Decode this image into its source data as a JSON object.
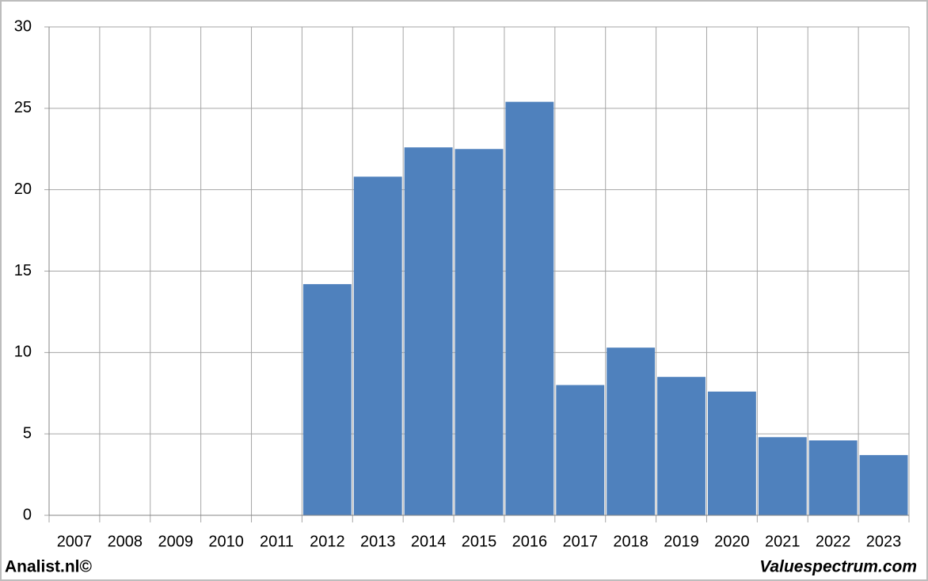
{
  "chart_data": {
    "type": "bar",
    "categories": [
      "2007",
      "2008",
      "2009",
      "2010",
      "2011",
      "2012",
      "2013",
      "2014",
      "2015",
      "2016",
      "2017",
      "2018",
      "2019",
      "2020",
      "2021",
      "2022",
      "2023"
    ],
    "values": [
      null,
      null,
      null,
      null,
      null,
      14.2,
      20.8,
      22.6,
      22.5,
      25.4,
      8.0,
      10.3,
      8.5,
      7.6,
      4.8,
      4.6,
      3.7
    ],
    "color": "#4f81bd",
    "ylim": [
      0,
      30
    ],
    "yticks": [
      0,
      5,
      10,
      15,
      20,
      25,
      30
    ],
    "grid": true
  },
  "footer": {
    "left": "Analist.nl©",
    "right": "Valuespectrum.com"
  }
}
